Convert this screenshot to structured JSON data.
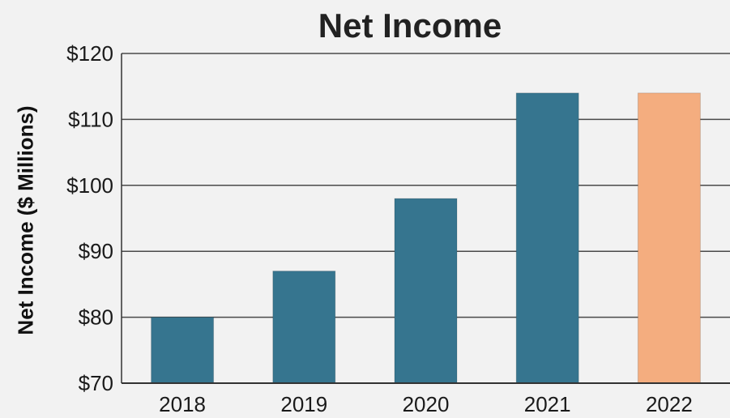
{
  "chart_data": {
    "type": "bar",
    "title": "Net Income",
    "xlabel": "",
    "ylabel": "Net Income ($ Millions)",
    "categories": [
      "2018",
      "2019",
      "2020",
      "2021",
      "2022"
    ],
    "values": [
      80,
      87,
      98,
      114,
      114
    ],
    "ylim": [
      70,
      120
    ],
    "yticks": [
      70,
      80,
      90,
      100,
      110,
      120
    ],
    "ytick_labels": [
      "$70",
      "$80",
      "$90",
      "$100",
      "$110",
      "$120"
    ],
    "grid": "horizontal",
    "colors": [
      "#36758f",
      "#36758f",
      "#36758f",
      "#36758f",
      "#f4ad7f"
    ]
  }
}
